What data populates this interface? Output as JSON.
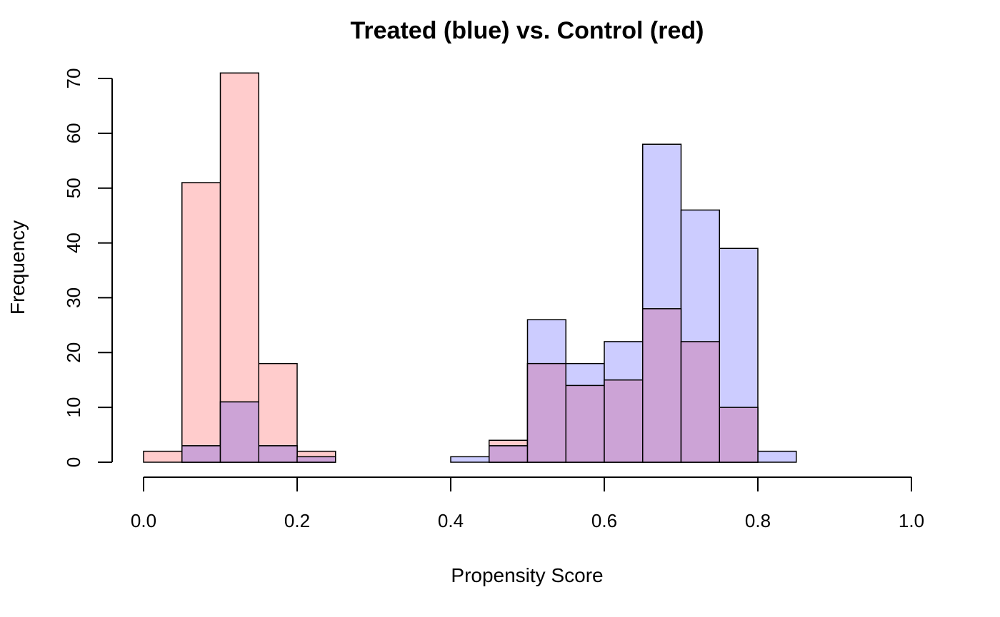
{
  "chart_data": {
    "type": "bar",
    "subtype": "overlaid-histogram",
    "title": "Treated (blue) vs. Control (red)",
    "xlabel": "Propensity Score",
    "ylabel": "Frequency",
    "xlim": [
      0,
      1
    ],
    "ylim": [
      0,
      70
    ],
    "x_ticks": [
      "0.0",
      "0.2",
      "0.4",
      "0.6",
      "0.8",
      "1.0"
    ],
    "x_tick_values": [
      0,
      0.2,
      0.4,
      0.6,
      0.8,
      1.0
    ],
    "y_ticks": [
      "0",
      "10",
      "20",
      "30",
      "40",
      "50",
      "60",
      "70"
    ],
    "y_tick_values": [
      0,
      10,
      20,
      30,
      40,
      50,
      60,
      70
    ],
    "bin_edges": [
      0.0,
      0.05,
      0.1,
      0.15,
      0.2,
      0.25,
      0.3,
      0.35,
      0.4,
      0.45,
      0.5,
      0.55,
      0.6,
      0.65,
      0.7,
      0.75,
      0.8,
      0.85
    ],
    "grid": false,
    "legend": "none",
    "series": [
      {
        "key": "control",
        "color": "#FFCCCC",
        "values": [
          2,
          51,
          71,
          18,
          2,
          0,
          0,
          0,
          0,
          4,
          18,
          14,
          15,
          28,
          22,
          10,
          0
        ]
      },
      {
        "key": "treated",
        "color": "#CCCCFF",
        "values": [
          0,
          3,
          11,
          3,
          1,
          0,
          0,
          0,
          1,
          3,
          26,
          18,
          22,
          58,
          46,
          39,
          2
        ]
      }
    ],
    "overlap_color": "#CCA3D6"
  }
}
